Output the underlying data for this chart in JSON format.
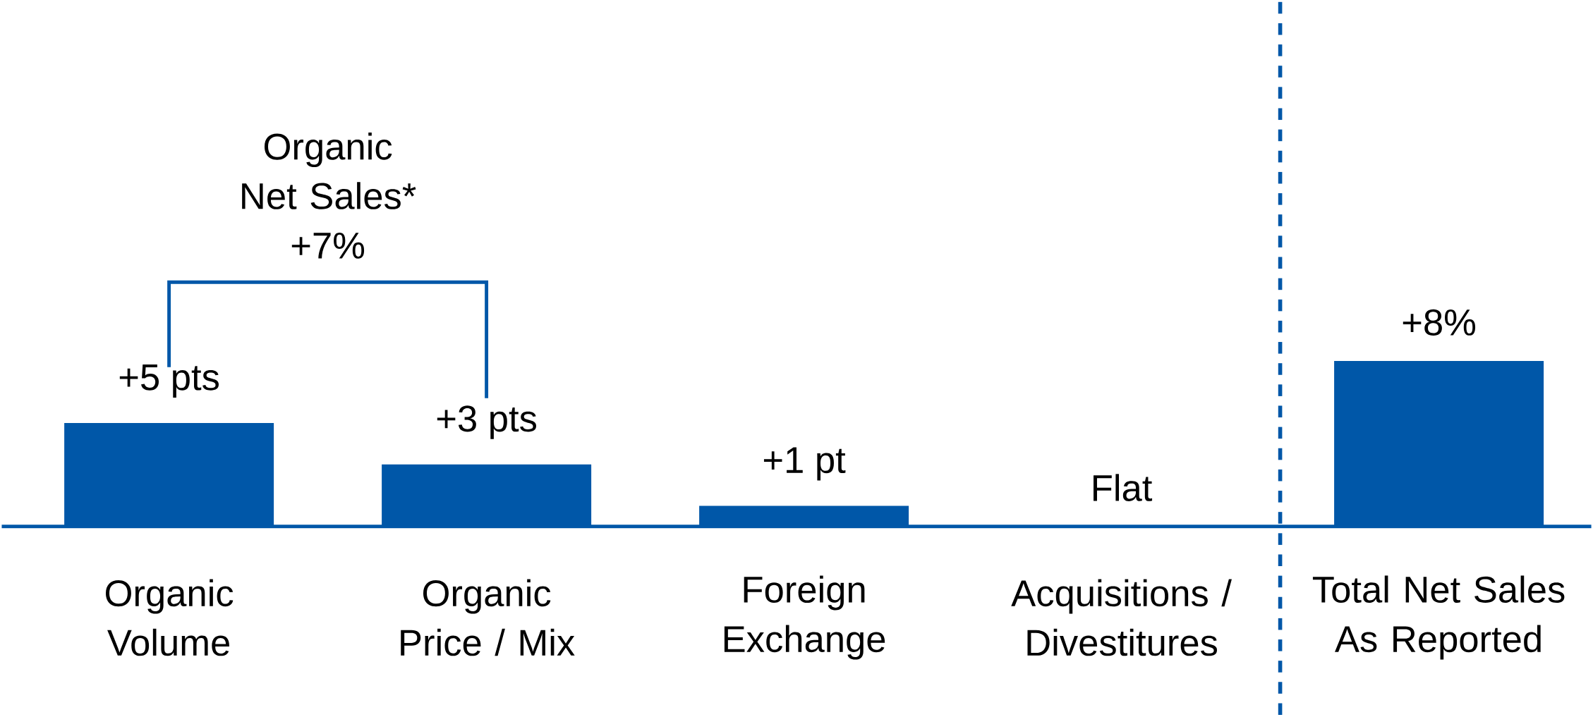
{
  "chart_data": {
    "type": "bar",
    "categories": [
      "Organic\nVolume",
      "Organic\nPrice / Mix",
      "Foreign\nExchange",
      "Acquisitions /\nDivestitures",
      "Total Net Sales\nAs Reported"
    ],
    "values": [
      5,
      3,
      1,
      0,
      8
    ],
    "value_labels": [
      "+5 pts",
      "+3 pts",
      "+1 pt",
      "Flat",
      "+8%"
    ],
    "color": "#0057a8",
    "annotations": [
      "Organic\nNet Sales*\n+7%"
    ]
  }
}
